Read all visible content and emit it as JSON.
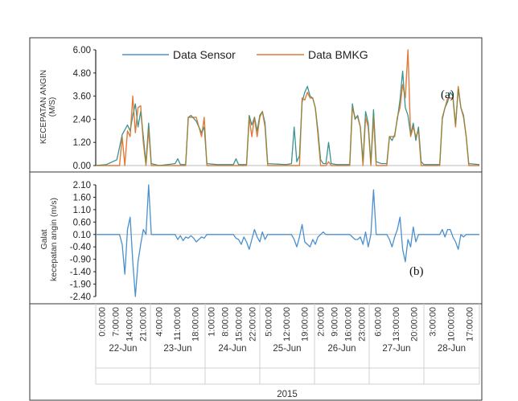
{
  "chart_data": [
    {
      "type": "line",
      "panel_label": "(a)",
      "ylabel_lines": [
        "KECEPATAN ANGIN",
        "(M/S)"
      ],
      "yticks": [
        "6.00",
        "4.80",
        "3.60",
        "2.40",
        "1.20",
        "0.00"
      ],
      "ylim": [
        0,
        6.0
      ],
      "legend_placement": "top",
      "legend": [
        "Data Sensor",
        "Data BMKG"
      ],
      "colors": {
        "Data Sensor": "#4a90d0",
        "Data BMKG": "#e07b39",
        "overlap": "#2a9a3a"
      },
      "series": [
        {
          "name": "Data Sensor",
          "points": [
            [
              0,
              0
            ],
            [
              4,
              0.05
            ],
            [
              8,
              0.3
            ],
            [
              10,
              1.6
            ],
            [
              12,
              2.1
            ],
            [
              13,
              1.8
            ],
            [
              14,
              2.6
            ],
            [
              15,
              3.2
            ],
            [
              16,
              2.0
            ],
            [
              17,
              2.8
            ],
            [
              18,
              1.5
            ],
            [
              19,
              0.1
            ],
            [
              20,
              2.2
            ],
            [
              21,
              0.1
            ],
            [
              24,
              0
            ],
            [
              30,
              0.1
            ],
            [
              31,
              0.35
            ],
            [
              32,
              0.05
            ],
            [
              34,
              0.05
            ],
            [
              35,
              2.5
            ],
            [
              36,
              2.6
            ],
            [
              38,
              2.3
            ],
            [
              40,
              1.7
            ],
            [
              41,
              2.0
            ],
            [
              42,
              0.1
            ],
            [
              46,
              0.05
            ],
            [
              52,
              0.05
            ],
            [
              53,
              0.35
            ],
            [
              54,
              0.05
            ],
            [
              57,
              0.05
            ],
            [
              58,
              2.6
            ],
            [
              59,
              2.1
            ],
            [
              60,
              2.5
            ],
            [
              61,
              1.8
            ],
            [
              62,
              2.6
            ],
            [
              63,
              2.8
            ],
            [
              64,
              2.2
            ],
            [
              65,
              0.1
            ],
            [
              72,
              0.05
            ],
            [
              74,
              0.1
            ],
            [
              75,
              2.0
            ],
            [
              76,
              0.2
            ],
            [
              77,
              0.5
            ],
            [
              78,
              3.3
            ],
            [
              79,
              3.8
            ],
            [
              80,
              4.1
            ],
            [
              81,
              3.6
            ],
            [
              82,
              3.5
            ],
            [
              83,
              3.0
            ],
            [
              84,
              1.8
            ],
            [
              85,
              0.3
            ],
            [
              86,
              0.1
            ],
            [
              87,
              0.1
            ],
            [
              88,
              1.2
            ],
            [
              89,
              0.1
            ],
            [
              91,
              0.05
            ],
            [
              96,
              0.05
            ],
            [
              97,
              3.2
            ],
            [
              98,
              2.4
            ],
            [
              99,
              2.6
            ],
            [
              100,
              2.0
            ],
            [
              101,
              0.2
            ],
            [
              102,
              2.8
            ],
            [
              103,
              2.2
            ],
            [
              104,
              0.1
            ],
            [
              105,
              2.9
            ],
            [
              106,
              0.2
            ],
            [
              108,
              0.1
            ],
            [
              110,
              0.1
            ],
            [
              111,
              1.5
            ],
            [
              112,
              1.3
            ],
            [
              113,
              1.6
            ],
            [
              114,
              2.4
            ],
            [
              115,
              3.4
            ],
            [
              116,
              4.9
            ],
            [
              117,
              3.0
            ],
            [
              118,
              2.6
            ],
            [
              119,
              1.6
            ],
            [
              120,
              2.2
            ],
            [
              121,
              1.3
            ],
            [
              122,
              2.0
            ],
            [
              123,
              0.2
            ],
            [
              124,
              0.05
            ],
            [
              130,
              0.05
            ],
            [
              131,
              2.4
            ],
            [
              132,
              3.0
            ],
            [
              133,
              3.3
            ],
            [
              134,
              3.8
            ],
            [
              135,
              3.6
            ],
            [
              136,
              2.1
            ],
            [
              137,
              4.0
            ],
            [
              138,
              3.0
            ],
            [
              139,
              2.6
            ],
            [
              140,
              1.5
            ],
            [
              141,
              0.1
            ],
            [
              145,
              0.05
            ]
          ]
        },
        {
          "name": "Data BMKG",
          "points": [
            [
              0,
              0
            ],
            [
              9,
              0
            ],
            [
              10,
              1.5
            ],
            [
              11,
              0
            ],
            [
              12,
              1.8
            ],
            [
              13,
              1.5
            ],
            [
              14,
              3.6
            ],
            [
              15,
              1.7
            ],
            [
              16,
              3.0
            ],
            [
              17,
              3.1
            ],
            [
              18,
              1.2
            ],
            [
              19,
              0
            ],
            [
              20,
              1.9
            ],
            [
              21,
              0
            ],
            [
              34,
              0
            ],
            [
              35,
              2.5
            ],
            [
              36,
              2.5
            ],
            [
              38,
              2.5
            ],
            [
              40,
              1.5
            ],
            [
              41,
              2.5
            ],
            [
              42,
              0
            ],
            [
              57,
              0
            ],
            [
              58,
              2.5
            ],
            [
              59,
              1.5
            ],
            [
              60,
              2.5
            ],
            [
              61,
              1.5
            ],
            [
              62,
              2.5
            ],
            [
              63,
              2.8
            ],
            [
              64,
              2.0
            ],
            [
              65,
              0
            ],
            [
              77,
              0
            ],
            [
              78,
              3.5
            ],
            [
              79,
              3.4
            ],
            [
              80,
              3.8
            ],
            [
              81,
              3.5
            ],
            [
              82,
              3.5
            ],
            [
              83,
              3.0
            ],
            [
              84,
              1.6
            ],
            [
              85,
              0
            ],
            [
              87,
              0
            ],
            [
              88,
              0.2
            ],
            [
              89,
              0
            ],
            [
              96,
              0
            ],
            [
              97,
              3.0
            ],
            [
              98,
              2.5
            ],
            [
              99,
              2.5
            ],
            [
              100,
              2.0
            ],
            [
              101,
              0
            ],
            [
              102,
              2.5
            ],
            [
              103,
              2.0
            ],
            [
              104,
              0
            ],
            [
              105,
              2.5
            ],
            [
              106,
              0
            ],
            [
              110,
              0
            ],
            [
              111,
              1.5
            ],
            [
              112,
              1.5
            ],
            [
              113,
              1.5
            ],
            [
              114,
              2.5
            ],
            [
              115,
              3.0
            ],
            [
              116,
              4.2
            ],
            [
              117,
              3.5
            ],
            [
              118,
              6.0
            ],
            [
              119,
              1.5
            ],
            [
              120,
              2.0
            ],
            [
              121,
              1.5
            ],
            [
              122,
              1.8
            ],
            [
              123,
              0
            ],
            [
              130,
              0
            ],
            [
              131,
              2.5
            ],
            [
              132,
              3.0
            ],
            [
              133,
              3.5
            ],
            [
              134,
              3.5
            ],
            [
              135,
              3.5
            ],
            [
              136,
              2.0
            ],
            [
              137,
              4.1
            ],
            [
              138,
              3.0
            ],
            [
              139,
              2.5
            ],
            [
              140,
              1.5
            ],
            [
              141,
              0
            ],
            [
              145,
              0
            ]
          ]
        }
      ]
    },
    {
      "type": "line",
      "panel_label": "(b)",
      "ylabel_lines": [
        "Galat",
        "kecepatan angin (m/s)"
      ],
      "yticks": [
        "2.10",
        "1.60",
        "1.10",
        "0.60",
        "0.10",
        "-0.40",
        "-0.90",
        "-1.40",
        "-1.90",
        "-2.40"
      ],
      "ylim": [
        -2.4,
        2.1
      ],
      "color": "#4a90d0",
      "series": [
        {
          "points": [
            [
              0,
              0.1
            ],
            [
              9,
              0.1
            ],
            [
              10,
              -0.3
            ],
            [
              11,
              -1.5
            ],
            [
              12,
              0.3
            ],
            [
              13,
              0.8
            ],
            [
              14,
              -1.0
            ],
            [
              15,
              -2.4
            ],
            [
              16,
              -1.0
            ],
            [
              17,
              -0.3
            ],
            [
              18,
              0.3
            ],
            [
              19,
              0.1
            ],
            [
              20,
              2.1
            ],
            [
              21,
              0.1
            ],
            [
              30,
              0.1
            ],
            [
              31,
              -0.1
            ],
            [
              32,
              0.05
            ],
            [
              33,
              -0.15
            ],
            [
              34,
              0.0
            ],
            [
              35,
              -0.05
            ],
            [
              36,
              0.05
            ],
            [
              37,
              -0.05
            ],
            [
              38,
              -0.2
            ],
            [
              40,
              0.0
            ],
            [
              41,
              -0.05
            ],
            [
              42,
              0.1
            ],
            [
              52,
              0.1
            ],
            [
              53,
              -0.05
            ],
            [
              54,
              -0.1
            ],
            [
              55,
              -0.3
            ],
            [
              56,
              0.0
            ],
            [
              57,
              -0.2
            ],
            [
              58,
              -0.5
            ],
            [
              59,
              -0.1
            ],
            [
              60,
              0.3
            ],
            [
              61,
              0.0
            ],
            [
              62,
              -0.2
            ],
            [
              63,
              0.2
            ],
            [
              64,
              -0.1
            ],
            [
              65,
              0.1
            ],
            [
              74,
              0.1
            ],
            [
              75,
              -0.1
            ],
            [
              76,
              -0.4
            ],
            [
              77,
              0.0
            ],
            [
              78,
              0.5
            ],
            [
              79,
              -0.2
            ],
            [
              80,
              -0.3
            ],
            [
              81,
              -0.4
            ],
            [
              82,
              -0.1
            ],
            [
              83,
              -0.3
            ],
            [
              84,
              0.0
            ],
            [
              85,
              0.1
            ],
            [
              86,
              0.2
            ],
            [
              87,
              0.1
            ],
            [
              96,
              0.1
            ],
            [
              97,
              0.0
            ],
            [
              98,
              -0.1
            ],
            [
              99,
              -0.1
            ],
            [
              100,
              0.0
            ],
            [
              101,
              -0.3
            ],
            [
              102,
              0.2
            ],
            [
              103,
              -0.4
            ],
            [
              104,
              0.1
            ],
            [
              105,
              1.9
            ],
            [
              106,
              0.1
            ],
            [
              110,
              0.1
            ],
            [
              111,
              -0.1
            ],
            [
              112,
              -0.4
            ],
            [
              113,
              0.0
            ],
            [
              114,
              0.3
            ],
            [
              115,
              0.8
            ],
            [
              116,
              -0.5
            ],
            [
              117,
              -1.0
            ],
            [
              118,
              -0.1
            ],
            [
              119,
              -0.4
            ],
            [
              120,
              0.4
            ],
            [
              121,
              -0.2
            ],
            [
              122,
              0.1
            ],
            [
              130,
              0.1
            ],
            [
              131,
              0.3
            ],
            [
              132,
              0.0
            ],
            [
              133,
              0.3
            ],
            [
              134,
              0.3
            ],
            [
              135,
              0.0
            ],
            [
              136,
              -0.2
            ],
            [
              137,
              -0.5
            ],
            [
              138,
              0.1
            ],
            [
              139,
              0.0
            ],
            [
              140,
              0.1
            ],
            [
              145,
              0.1
            ]
          ]
        }
      ]
    }
  ],
  "x_axis": {
    "days": [
      {
        "label": "22-Jun",
        "ticks": [
          "0:00:00",
          "7:00:00",
          "14:00:00",
          "21:00:00"
        ]
      },
      {
        "label": "23-Jun",
        "ticks": [
          "4:00:00",
          "11:00:00",
          "18:00:00"
        ]
      },
      {
        "label": "24-Jun",
        "ticks": [
          "1:00:00",
          "8:00:00",
          "15:00:00",
          "22:00:00"
        ]
      },
      {
        "label": "25-Jun",
        "ticks": [
          "5:00:00",
          "12:00:00",
          "19:00:00"
        ]
      },
      {
        "label": "26-Jun",
        "ticks": [
          "2:00:00",
          "9:00:00",
          "16:00:00",
          "23:00:00"
        ]
      },
      {
        "label": "27-Jun",
        "ticks": [
          "6:00:00",
          "13:00:00",
          "20:00:00"
        ]
      },
      {
        "label": "28-Jun",
        "ticks": [
          "3:00:00",
          "10:00:00",
          "17:00:00"
        ]
      }
    ],
    "year": "2015"
  }
}
